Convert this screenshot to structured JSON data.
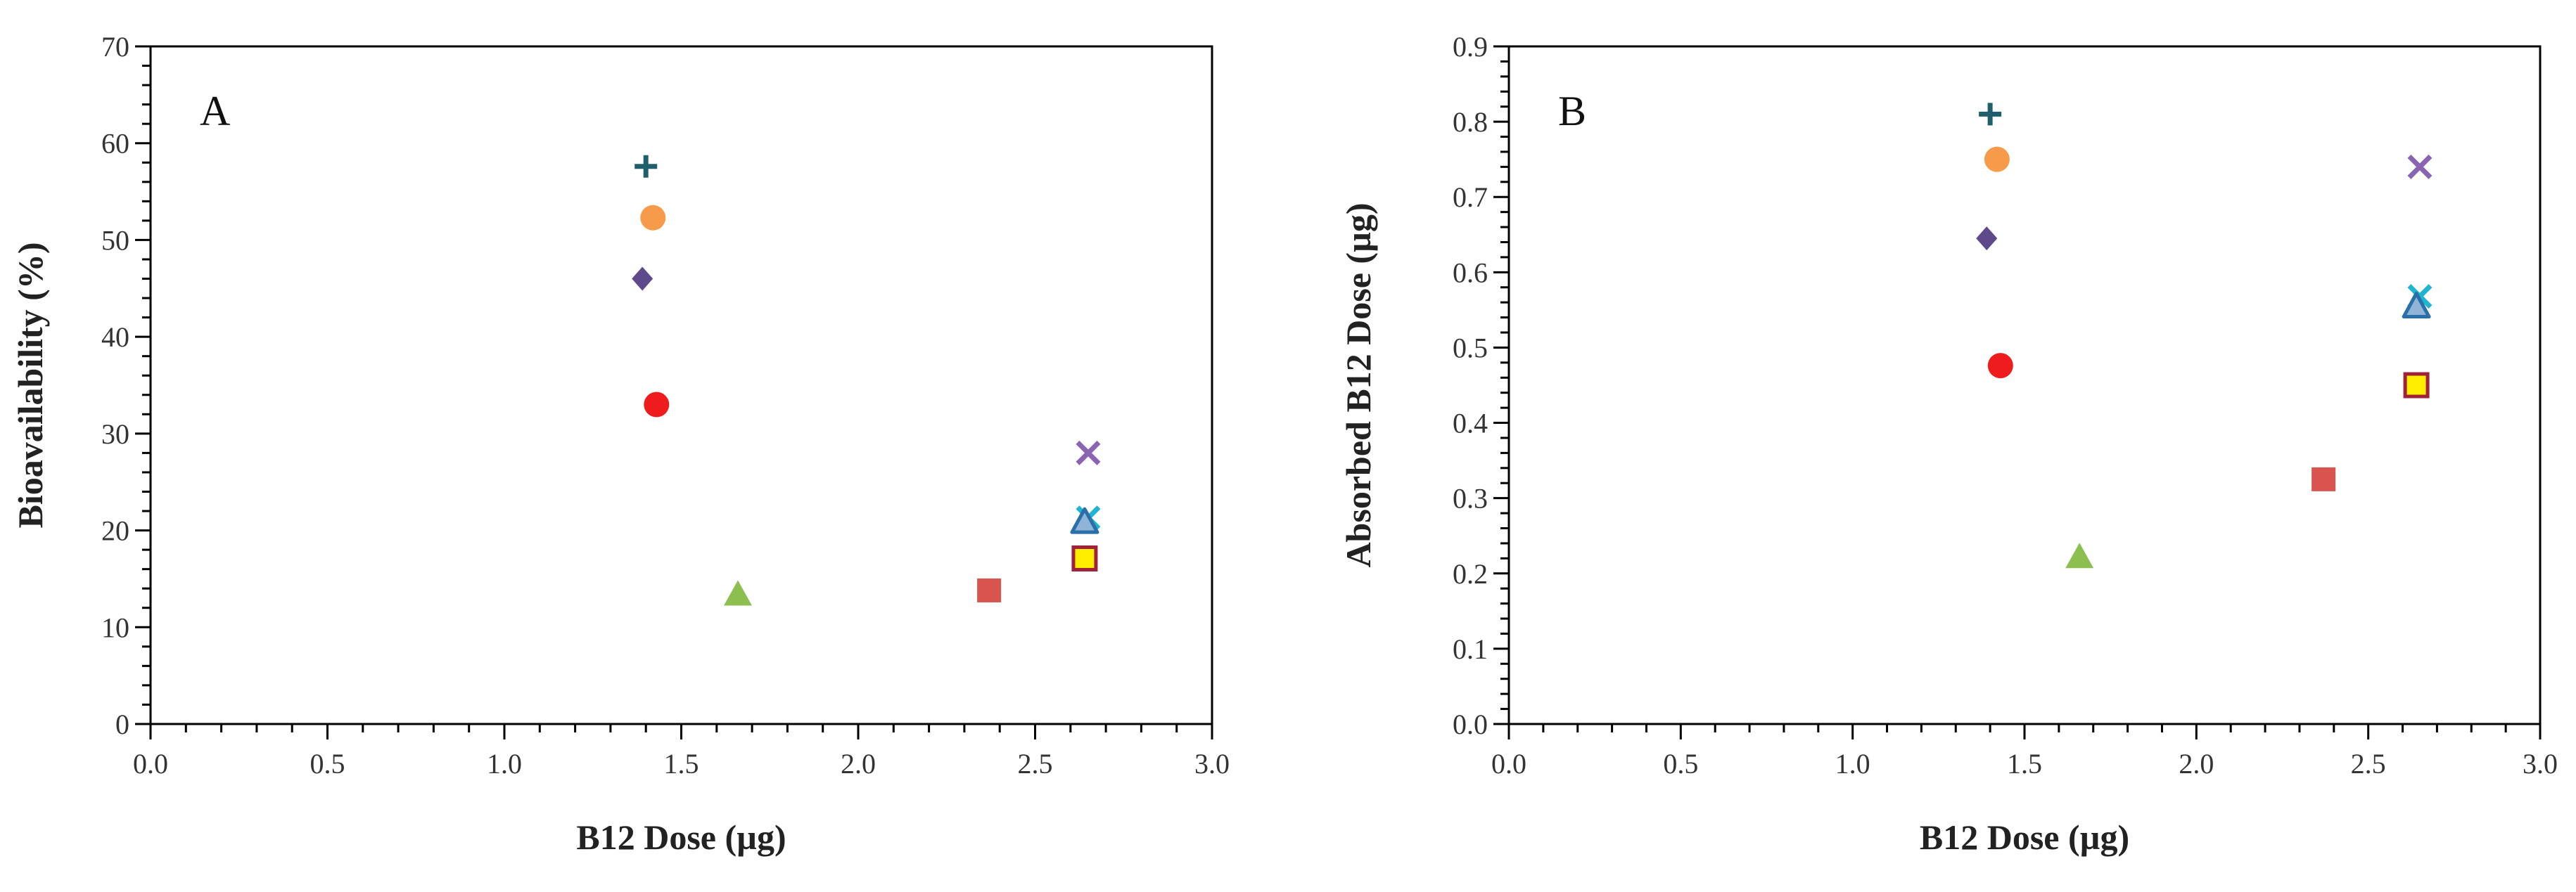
{
  "chart_data": [
    {
      "type": "scatter",
      "panel_label": "A",
      "xlabel": "B12 Dose (µg)",
      "ylabel": "Bioavailability (%)",
      "xlim": [
        0,
        3
      ],
      "ylim": [
        0,
        70
      ],
      "x_ticks": [
        "0.0",
        "0.5",
        "1.0",
        "1.5",
        "2.0",
        "2.5",
        "3.0"
      ],
      "y_ticks": [
        "0",
        "10",
        "20",
        "30",
        "40",
        "50",
        "60",
        "70"
      ],
      "grid": false,
      "series": [
        {
          "marker": "plus",
          "color": "#1f5f6b",
          "x": 1.4,
          "y": 57.6
        },
        {
          "marker": "circle",
          "color": "#f79b4a",
          "x": 1.42,
          "y": 52.3
        },
        {
          "marker": "diamond",
          "color": "#5e4a8b",
          "x": 1.39,
          "y": 46.0
        },
        {
          "marker": "circle",
          "color": "#ee1c1c",
          "x": 1.43,
          "y": 33.0
        },
        {
          "marker": "triangle",
          "color": "#8cbf4f",
          "x": 1.66,
          "y": 13.4
        },
        {
          "marker": "square",
          "color": "#d9534f",
          "x": 2.37,
          "y": 13.8
        },
        {
          "marker": "x",
          "color": "#8a64b2",
          "x": 2.65,
          "y": 28.0
        },
        {
          "marker": "x",
          "color": "#1fb4cf",
          "x": 2.65,
          "y": 21.3
        },
        {
          "marker": "triangle-outline",
          "color": "#2a6fa8",
          "fill": "#8fb4d8",
          "x": 2.64,
          "y": 20.9
        },
        {
          "marker": "square-outline",
          "color": "#a0213a",
          "fill": "#ffee00",
          "x": 2.64,
          "y": 17.1
        }
      ]
    },
    {
      "type": "scatter",
      "panel_label": "B",
      "xlabel": "B12 Dose (µg)",
      "ylabel": "Absorbed B12 Dose (µg)",
      "xlim": [
        0,
        3
      ],
      "ylim": [
        0,
        0.9
      ],
      "x_ticks": [
        "0.0",
        "0.5",
        "1.0",
        "1.5",
        "2.0",
        "2.5",
        "3.0"
      ],
      "y_ticks": [
        "0.0",
        "0.1",
        "0.2",
        "0.3",
        "0.4",
        "0.5",
        "0.6",
        "0.7",
        "0.8",
        "0.9"
      ],
      "grid": false,
      "series": [
        {
          "marker": "plus",
          "color": "#1f5f6b",
          "x": 1.4,
          "y": 0.81
        },
        {
          "marker": "circle",
          "color": "#f79b4a",
          "x": 1.42,
          "y": 0.75
        },
        {
          "marker": "diamond",
          "color": "#5e4a8b",
          "x": 1.39,
          "y": 0.645
        },
        {
          "marker": "circle",
          "color": "#ee1c1c",
          "x": 1.43,
          "y": 0.476
        },
        {
          "marker": "triangle",
          "color": "#8cbf4f",
          "x": 1.66,
          "y": 0.222
        },
        {
          "marker": "square",
          "color": "#d9534f",
          "x": 2.37,
          "y": 0.325
        },
        {
          "marker": "x",
          "color": "#8a64b2",
          "x": 2.65,
          "y": 0.74
        },
        {
          "marker": "x",
          "color": "#1fb4cf",
          "x": 2.65,
          "y": 0.568
        },
        {
          "marker": "triangle-outline",
          "color": "#2a6fa8",
          "fill": "#8fb4d8",
          "x": 2.64,
          "y": 0.555
        },
        {
          "marker": "square-outline",
          "color": "#a0213a",
          "fill": "#ffee00",
          "x": 2.64,
          "y": 0.45
        }
      ]
    }
  ]
}
